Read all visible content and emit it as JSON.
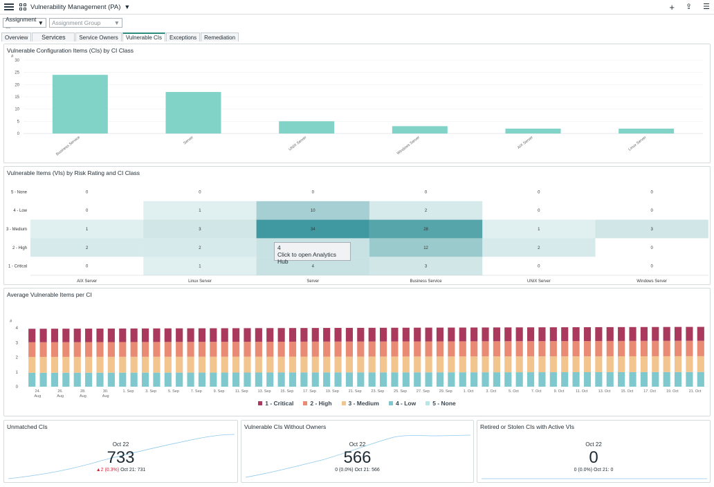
{
  "header": {
    "title": "Vulnerability Management (PA)"
  },
  "filters": {
    "assignment": "Assignment ...",
    "assignment_group_placeholder": "Assignment Group"
  },
  "tabs": [
    {
      "label": "Overview"
    },
    {
      "label": "Services"
    },
    {
      "label": "Service Owners"
    },
    {
      "label": "Vulnerable CIs"
    },
    {
      "label": "Exceptions"
    },
    {
      "label": "Remediation"
    }
  ],
  "colors": {
    "bar": "#81d2c7",
    "critical": "#a93a5e",
    "high": "#e98b74",
    "medium": "#f2c58f",
    "low": "#7fc8cd",
    "none": "#b9e5e4",
    "heat_base": "#3c979e",
    "spark": "#8cc8ec"
  },
  "chart_ci_class": {
    "title": "Vulnerable Configuration Items (CIs) by CI Class",
    "chart_data": {
      "type": "bar",
      "categories": [
        "Business Service",
        "Server",
        "UNIX Server",
        "Windows Server",
        "AIX Server",
        "Linux Server"
      ],
      "values": [
        24,
        17,
        5,
        3,
        2,
        2
      ],
      "ylim": [
        0,
        30
      ],
      "yticks": [
        0,
        5,
        10,
        15,
        20,
        25,
        30
      ],
      "ylabel": "#"
    }
  },
  "heatmap": {
    "title": "Vulnerable Items (VIs) by Risk Rating and CI Class",
    "chart_data": {
      "type": "heatmap",
      "x": [
        "AIX Server",
        "Linux Server",
        "Server",
        "Business Service",
        "UNIX Server",
        "Windows Server"
      ],
      "y": [
        "5 - None",
        "4 - Low",
        "3 - Medium",
        "2 - High",
        "1 - Critical"
      ],
      "values": [
        [
          0,
          0,
          0,
          0,
          0,
          0
        ],
        [
          0,
          1,
          10,
          2,
          0,
          0
        ],
        [
          1,
          3,
          34,
          28,
          1,
          3
        ],
        [
          2,
          2,
          4,
          12,
          2,
          0
        ],
        [
          0,
          1,
          4,
          3,
          0,
          0
        ]
      ]
    },
    "tooltip": {
      "value": "4",
      "text": "Click to open Analytics Hub"
    }
  },
  "avg_chart": {
    "title": "Average Vulnerable Items per CI",
    "chart_data": {
      "type": "bar",
      "stacked": true,
      "ylim": [
        0,
        5
      ],
      "yticks": [
        0,
        1,
        2,
        3,
        4
      ],
      "ylabel": "#",
      "x_tick_labels": [
        "24. Aug",
        "26. Aug",
        "28. Aug",
        "30. Aug",
        "1. Sep",
        "3. Sep",
        "5. Sep",
        "7. Sep",
        "9. Sep",
        "11. Sep",
        "13. Sep",
        "15. Sep",
        "17. Sep",
        "19. Sep",
        "21. Sep",
        "23. Sep",
        "25. Sep",
        "27. Sep",
        "29. Sep",
        "1. Oct",
        "3. Oct",
        "5. Oct",
        "7. Oct",
        "9. Oct",
        "11. Oct",
        "13. Oct",
        "15. Oct",
        "17. Oct",
        "19. Oct",
        "21. Oct"
      ],
      "series": [
        {
          "name": "1 - Critical",
          "start": 0.92,
          "end": 0.95
        },
        {
          "name": "2 - High",
          "start": 1.0,
          "end": 1.05
        },
        {
          "name": "3 - Medium",
          "start": 1.08,
          "end": 1.08
        },
        {
          "name": "4 - Low",
          "start": 0.95,
          "end": 1.0
        },
        {
          "name": "5 - None",
          "start": 0.0,
          "end": 0.0
        }
      ],
      "bar_count": 60
    }
  },
  "kpis": [
    {
      "title": "Unmatched CIs",
      "date": "Oct 22",
      "value": "733",
      "delta": "▲2 (0.3%)",
      "prev": "Oct 21: 731"
    },
    {
      "title": "Vulnerable CIs Without Owners",
      "date": "Oct 22",
      "value": "566",
      "delta": "0 (0.0%)",
      "prev": "Oct 21: 566"
    },
    {
      "title": "Retired or Stolen CIs with Active VIs",
      "date": "Oct 22",
      "value": "0",
      "delta": "0 (0.0%)",
      "prev": "Oct 21: 0"
    }
  ]
}
